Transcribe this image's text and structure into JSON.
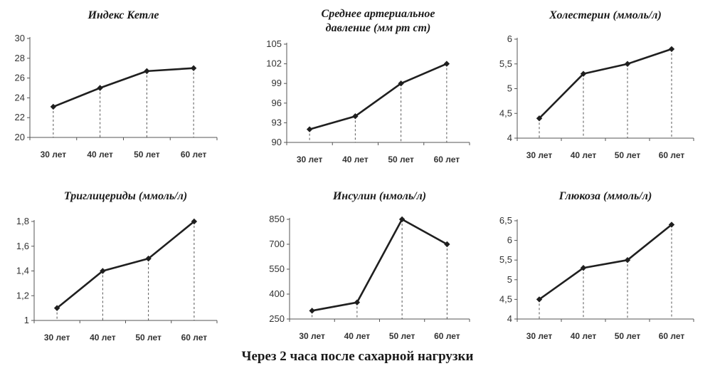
{
  "caption": "Через 2 часа после сахарной нагрузки",
  "colors": {
    "line": "#1f1f1f",
    "axis": "#555555",
    "dash": "#555555"
  },
  "chart_data": [
    {
      "type": "line",
      "title": "Индекс Кетле",
      "categories": [
        "30 лет",
        "40 лет",
        "50 лет",
        "60 лет"
      ],
      "values": [
        23.1,
        25.0,
        26.7,
        27.0
      ],
      "ylim": [
        20,
        30
      ],
      "yticks": [
        "20",
        "22",
        "24",
        "26",
        "28",
        "30"
      ],
      "ytick_values": [
        20,
        22,
        24,
        26,
        28,
        30
      ],
      "grid": false
    },
    {
      "type": "line",
      "title": "Среднее артериальное давление (мм рт ст)",
      "categories": [
        "30 лет",
        "40 лет",
        "50 лет",
        "60 лет"
      ],
      "values": [
        92,
        94,
        99,
        102
      ],
      "ylim": [
        90,
        105
      ],
      "yticks": [
        "90",
        "93",
        "96",
        "99",
        "102",
        "105"
      ],
      "ytick_values": [
        90,
        93,
        96,
        99,
        102,
        105
      ],
      "grid": false
    },
    {
      "type": "line",
      "title": "Холестерин (ммоль/л)",
      "categories": [
        "30 лет",
        "40 лет",
        "50 лет",
        "60 лет"
      ],
      "values": [
        4.4,
        5.3,
        5.5,
        5.8
      ],
      "ylim": [
        4,
        6
      ],
      "yticks": [
        "4",
        "4,5",
        "5",
        "5,5",
        "6"
      ],
      "ytick_values": [
        4,
        4.5,
        5,
        5.5,
        6
      ],
      "grid": false
    },
    {
      "type": "line",
      "title": "Триглицериды (ммоль/л)",
      "categories": [
        "30 лет",
        "40 лет",
        "50 лет",
        "60 лет"
      ],
      "values": [
        1.1,
        1.4,
        1.5,
        1.8
      ],
      "ylim": [
        1,
        1.8
      ],
      "yticks": [
        "1",
        "1,2",
        "1,4",
        "1,6",
        "1,8"
      ],
      "ytick_values": [
        1,
        1.2,
        1.4,
        1.6,
        1.8
      ],
      "grid": false
    },
    {
      "type": "line",
      "title": "Инсулин (нмоль/л)",
      "categories": [
        "30 лет",
        "40 лет",
        "50 лет",
        "60 лет"
      ],
      "values": [
        300,
        350,
        850,
        700
      ],
      "ylim": [
        250,
        850
      ],
      "yticks": [
        "250",
        "400",
        "550",
        "700",
        "850"
      ],
      "ytick_values": [
        250,
        400,
        550,
        700,
        850
      ],
      "grid": false
    },
    {
      "type": "line",
      "title": "Глюкоза (ммоль/л)",
      "categories": [
        "30 лет",
        "40 лет",
        "50 лет",
        "60 лет"
      ],
      "values": [
        4.5,
        5.3,
        5.5,
        6.4
      ],
      "ylim": [
        4,
        6.5
      ],
      "yticks": [
        "4",
        "4,5",
        "5",
        "5,5",
        "6",
        "6,5"
      ],
      "ytick_values": [
        4,
        4.5,
        5,
        5.5,
        6,
        6.5
      ],
      "grid": false
    }
  ]
}
